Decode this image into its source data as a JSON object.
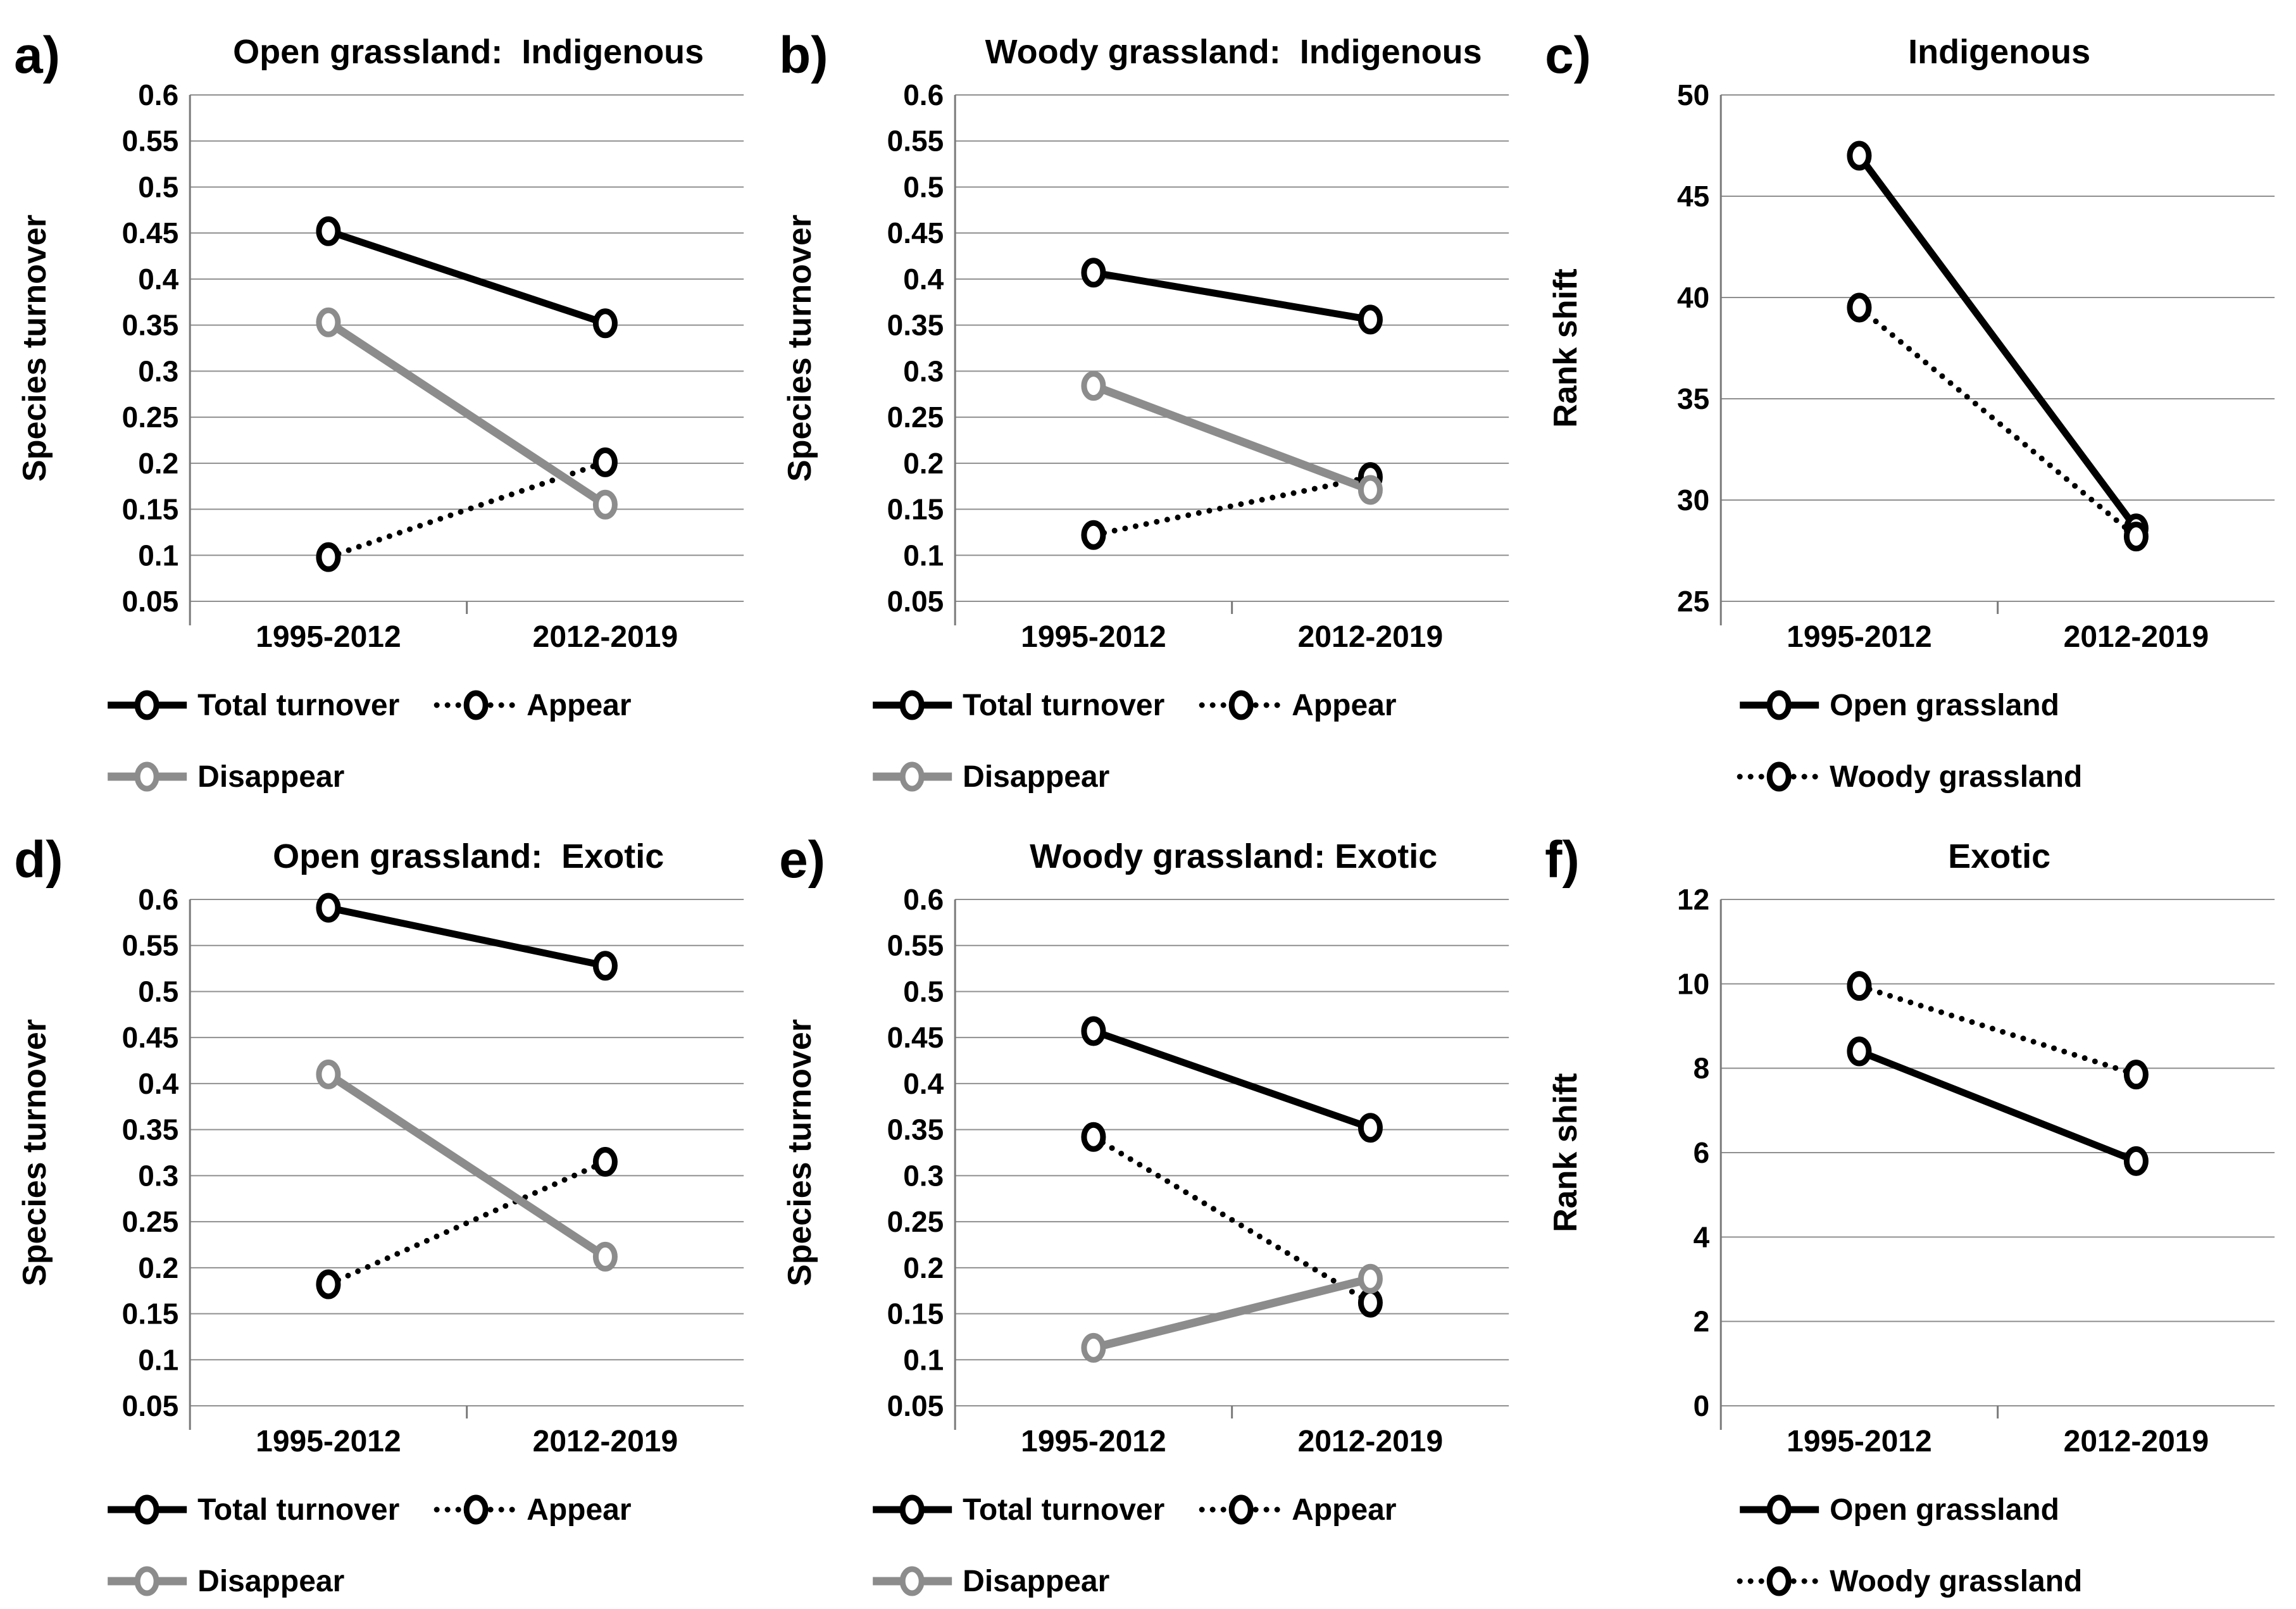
{
  "figure": {
    "background": "#ffffff",
    "grid_layout": "2 rows x 3 columns",
    "colors": {
      "black_series": "#000000",
      "gray_series": "#8c8c8c",
      "gridline": "#8f8f8f",
      "axis": "#7a7a7a"
    }
  },
  "chart_data": [
    {
      "type": "line",
      "label": "a)",
      "title": "Open grassland:  Indigenous",
      "ylabel": "Species turnover",
      "xlabel": "",
      "ymax": 0.6,
      "ymin": 0.05,
      "yticks": [
        "0.6",
        "0.55",
        "0.5",
        "0.45",
        "0.4",
        "0.35",
        "0.3",
        "0.25",
        "0.2",
        "0.15",
        "0.1",
        "0.05"
      ],
      "categories": [
        "1995-2012",
        "2012-2019"
      ],
      "grid": true,
      "legend_position": "bottom",
      "legend_indent": 170,
      "series": [
        {
          "name": "Total turnover",
          "color": "#000000",
          "dash": "solid",
          "width": 11,
          "values": [
            0.452,
            0.352
          ]
        },
        {
          "name": "Appear",
          "color": "#000000",
          "dash": "dotted",
          "width": 9,
          "values": [
            0.098,
            0.201
          ]
        },
        {
          "name": "Disappear",
          "color": "#8c8c8c",
          "dash": "solid",
          "width": 13,
          "values": [
            0.353,
            0.155
          ]
        }
      ],
      "legend_rows": [
        [
          "Total turnover",
          "Appear"
        ],
        [
          "Disappear"
        ]
      ]
    },
    {
      "type": "line",
      "label": "b)",
      "title": "Woody grassland:  Indigenous",
      "ylabel": "Species turnover",
      "xlabel": "",
      "ymax": 0.6,
      "ymin": 0.05,
      "yticks": [
        "0.6",
        "0.55",
        "0.5",
        "0.45",
        "0.4",
        "0.35",
        "0.3",
        "0.25",
        "0.2",
        "0.15",
        "0.1",
        "0.05"
      ],
      "categories": [
        "1995-2012",
        "2012-2019"
      ],
      "grid": true,
      "legend_position": "bottom",
      "legend_indent": 170,
      "series": [
        {
          "name": "Total turnover",
          "color": "#000000",
          "dash": "solid",
          "width": 11,
          "values": [
            0.407,
            0.356
          ]
        },
        {
          "name": "Appear",
          "color": "#000000",
          "dash": "dotted",
          "width": 9,
          "values": [
            0.122,
            0.185
          ]
        },
        {
          "name": "Disappear",
          "color": "#8c8c8c",
          "dash": "solid",
          "width": 13,
          "values": [
            0.284,
            0.171
          ]
        }
      ],
      "legend_rows": [
        [
          "Total turnover",
          "Appear"
        ],
        [
          "Disappear"
        ]
      ]
    },
    {
      "type": "line",
      "label": "c)",
      "title": "Indigenous",
      "ylabel": "Rank shift",
      "xlabel": "",
      "ymax": 50,
      "ymin": 25,
      "yticks": [
        "50",
        "45",
        "40",
        "35",
        "30",
        "25"
      ],
      "categories": [
        "1995-2012",
        "2012-2019"
      ],
      "grid": true,
      "legend_position": "bottom",
      "legend_indent": 330,
      "series": [
        {
          "name": "Open grassland",
          "color": "#000000",
          "dash": "solid",
          "width": 11,
          "values": [
            47.0,
            28.6
          ]
        },
        {
          "name": "Woody grassland",
          "color": "#000000",
          "dash": "dotted",
          "width": 9,
          "values": [
            39.5,
            28.2
          ]
        }
      ],
      "legend_rows": [
        [
          "Open grassland"
        ],
        [
          "Woody grassland"
        ]
      ]
    },
    {
      "type": "line",
      "label": "d)",
      "title": "Open grassland:  Exotic",
      "ylabel": "Species turnover",
      "xlabel": "",
      "ymax": 0.6,
      "ymin": 0.05,
      "yticks": [
        "0.6",
        "0.55",
        "0.5",
        "0.45",
        "0.4",
        "0.35",
        "0.3",
        "0.25",
        "0.2",
        "0.15",
        "0.1",
        "0.05"
      ],
      "categories": [
        "1995-2012",
        "2012-2019"
      ],
      "grid": true,
      "legend_position": "bottom",
      "legend_indent": 170,
      "series": [
        {
          "name": "Total turnover",
          "color": "#000000",
          "dash": "solid",
          "width": 11,
          "values": [
            0.591,
            0.528
          ]
        },
        {
          "name": "Appear",
          "color": "#000000",
          "dash": "dotted",
          "width": 9,
          "values": [
            0.182,
            0.315
          ]
        },
        {
          "name": "Disappear",
          "color": "#8c8c8c",
          "dash": "solid",
          "width": 13,
          "values": [
            0.41,
            0.212
          ]
        }
      ],
      "legend_rows": [
        [
          "Total turnover",
          "Appear"
        ],
        [
          "Disappear"
        ]
      ]
    },
    {
      "type": "line",
      "label": "e)",
      "title": "Woody grassland: Exotic",
      "ylabel": "Species turnover",
      "xlabel": "",
      "ymax": 0.6,
      "ymin": 0.05,
      "yticks": [
        "0.6",
        "0.55",
        "0.5",
        "0.45",
        "0.4",
        "0.35",
        "0.3",
        "0.25",
        "0.2",
        "0.15",
        "0.1",
        "0.05"
      ],
      "categories": [
        "1995-2012",
        "2012-2019"
      ],
      "grid": true,
      "legend_position": "bottom",
      "legend_indent": 170,
      "series": [
        {
          "name": "Total turnover",
          "color": "#000000",
          "dash": "solid",
          "width": 11,
          "values": [
            0.457,
            0.352
          ]
        },
        {
          "name": "Appear",
          "color": "#000000",
          "dash": "dotted",
          "width": 9,
          "values": [
            0.342,
            0.162
          ]
        },
        {
          "name": "Disappear",
          "color": "#8c8c8c",
          "dash": "solid",
          "width": 13,
          "values": [
            0.113,
            0.188
          ]
        }
      ],
      "legend_rows": [
        [
          "Total turnover",
          "Appear"
        ],
        [
          "Disappear"
        ]
      ]
    },
    {
      "type": "line",
      "label": "f)",
      "title": "Exotic",
      "ylabel": "Rank shift",
      "xlabel": "",
      "ymax": 12,
      "ymin": 0,
      "yticks": [
        "12",
        "10",
        "8",
        "6",
        "4",
        "2",
        "0"
      ],
      "categories": [
        "1995-2012",
        "2012-2019"
      ],
      "grid": true,
      "legend_position": "bottom",
      "legend_indent": 330,
      "series": [
        {
          "name": "Open grassland",
          "color": "#000000",
          "dash": "solid",
          "width": 11,
          "values": [
            8.4,
            5.8
          ]
        },
        {
          "name": "Woody grassland",
          "color": "#000000",
          "dash": "dotted",
          "width": 9,
          "values": [
            9.95,
            7.85
          ]
        }
      ],
      "legend_rows": [
        [
          "Open grassland"
        ],
        [
          "Woody grassland"
        ]
      ]
    }
  ]
}
